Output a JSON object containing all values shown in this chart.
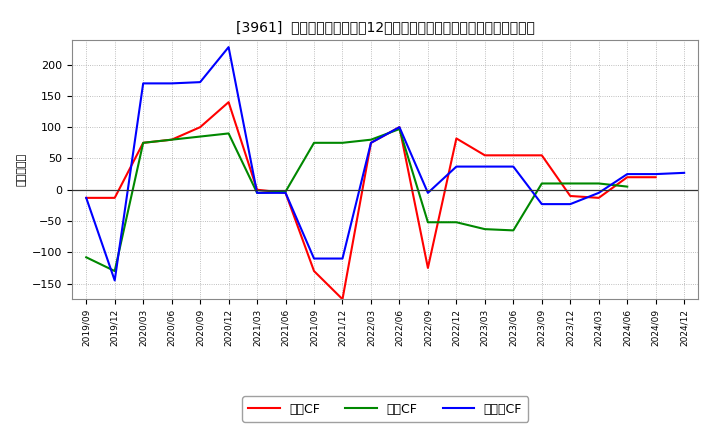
{
  "title": "[3961]  キャッシュフローの12か月移動合計の対前年同期増減額の推移",
  "ylabel": "（百万円）",
  "background_color": "#ffffff",
  "plot_bg_color": "#ffffff",
  "grid_color": "#aaaaaa",
  "x_labels": [
    "2019/09",
    "2019/12",
    "2020/03",
    "2020/06",
    "2020/09",
    "2020/12",
    "2021/03",
    "2021/06",
    "2021/09",
    "2021/12",
    "2022/03",
    "2022/06",
    "2022/09",
    "2022/12",
    "2023/03",
    "2023/06",
    "2023/09",
    "2023/12",
    "2024/03",
    "2024/06",
    "2024/09",
    "2024/12"
  ],
  "operating_cf": [
    -13,
    -13,
    75,
    80,
    100,
    140,
    0,
    -5,
    -130,
    -175,
    75,
    100,
    -125,
    82,
    55,
    55,
    55,
    -10,
    -13,
    20,
    20,
    null
  ],
  "investing_cf": [
    -108,
    -130,
    75,
    80,
    85,
    90,
    -5,
    -3,
    75,
    75,
    80,
    97,
    -52,
    -52,
    -63,
    -65,
    10,
    10,
    10,
    5,
    null,
    null
  ],
  "free_cf": [
    -13,
    -145,
    170,
    170,
    172,
    228,
    -5,
    -5,
    -110,
    -110,
    75,
    100,
    -5,
    37,
    37,
    37,
    -23,
    -23,
    -5,
    25,
    25,
    27
  ],
  "ylim": [
    -175,
    240
  ],
  "yticks": [
    -150,
    -100,
    -50,
    0,
    50,
    100,
    150,
    200
  ],
  "colors": {
    "operating": "#ff0000",
    "investing": "#008800",
    "free": "#0000ff"
  },
  "legend_labels": [
    "営業CF",
    "投資CF",
    "フリーCF"
  ]
}
